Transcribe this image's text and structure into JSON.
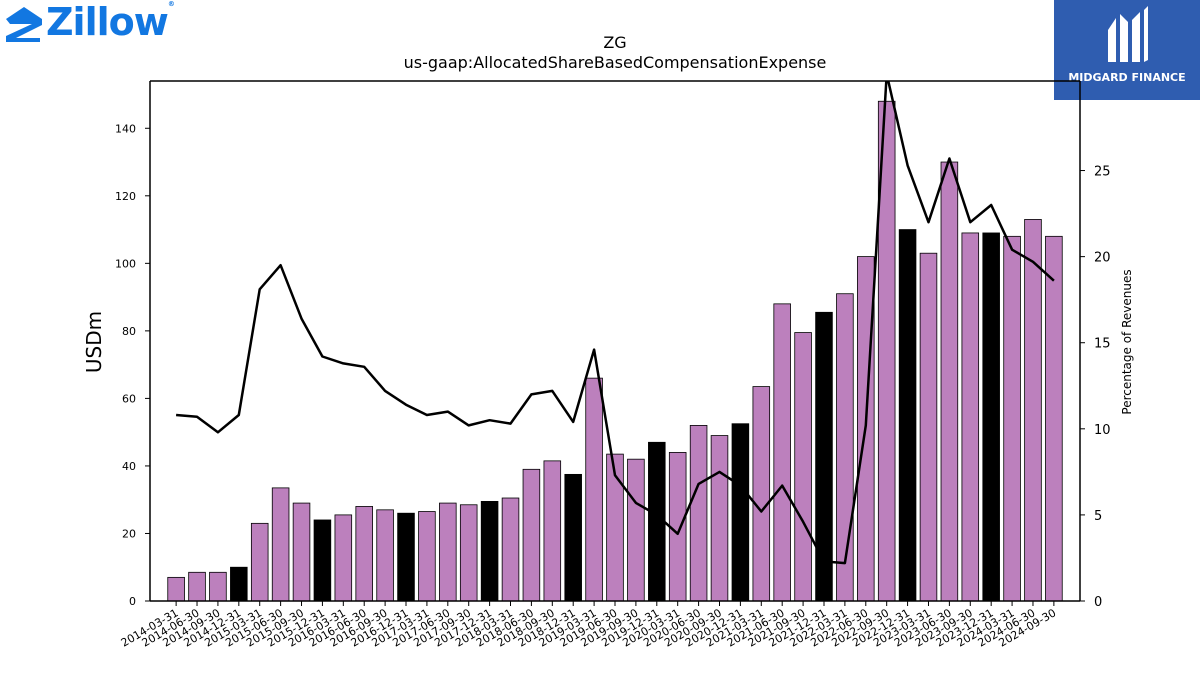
{
  "brand": {
    "name": "Zillow",
    "registered": "®",
    "partner": "MIDGARD FINANCE"
  },
  "colors": {
    "bar": "#bc80bd",
    "bar_highlight": "#000000",
    "line": "#000000",
    "brand_blue": "#1277e1",
    "badge_blue": "#2f5db0"
  },
  "chart_data": {
    "type": "bar",
    "title": "ZG",
    "subtitle": "us-gaap:AllocatedShareBasedCompensationExpense",
    "ylabel": "USDm",
    "y2label": "Percentage of Revenues",
    "ylim": [
      0,
      154
    ],
    "y2lim": [
      0,
      30.2
    ],
    "yticks": [
      0,
      20,
      40,
      60,
      80,
      100,
      120,
      140
    ],
    "y2ticks": [
      0,
      5,
      10,
      15,
      20,
      25
    ],
    "categories": [
      "2014-03-31",
      "2014-06-30",
      "2014-09-30",
      "2014-12-31",
      "2015-03-31",
      "2015-06-30",
      "2015-09-30",
      "2015-12-31",
      "2016-03-31",
      "2016-06-30",
      "2016-09-30",
      "2016-12-31",
      "2017-03-31",
      "2017-06-30",
      "2017-09-30",
      "2017-12-31",
      "2018-03-31",
      "2018-06-30",
      "2018-09-30",
      "2018-12-31",
      "2019-03-31",
      "2019-06-30",
      "2019-09-30",
      "2019-12-31",
      "2020-03-31",
      "2020-06-30",
      "2020-09-30",
      "2020-12-31",
      "2021-03-31",
      "2021-06-30",
      "2021-09-30",
      "2021-12-31",
      "2022-03-31",
      "2022-06-30",
      "2022-09-30",
      "2022-12-31",
      "2023-03-31",
      "2023-06-30",
      "2023-09-30",
      "2023-12-31",
      "2024-03-31",
      "2024-06-30",
      "2024-09-30"
    ],
    "series": [
      {
        "type": "bar",
        "values": [
          7,
          8.5,
          8.5,
          10,
          23,
          33.5,
          29,
          24,
          25.5,
          28,
          27,
          26,
          26.5,
          29,
          28.5,
          29.5,
          30.5,
          39,
          41.5,
          37.5,
          66,
          43.5,
          42,
          47,
          44,
          52,
          49,
          52.5,
          63.5,
          88,
          79.5,
          85.5,
          91,
          102,
          148,
          110,
          103,
          130,
          109,
          109,
          108,
          113,
          108
        ],
        "highlight": [
          false,
          false,
          false,
          true,
          false,
          false,
          false,
          true,
          false,
          false,
          false,
          true,
          false,
          false,
          false,
          true,
          false,
          false,
          false,
          true,
          false,
          false,
          false,
          true,
          false,
          false,
          false,
          true,
          false,
          false,
          false,
          true,
          false,
          false,
          false,
          true,
          false,
          false,
          false,
          true,
          false,
          false,
          false
        ]
      },
      {
        "type": "line",
        "axis": "right",
        "values": [
          10.8,
          10.7,
          9.8,
          10.8,
          18.1,
          19.5,
          16.4,
          14.2,
          13.8,
          13.6,
          12.2,
          11.4,
          10.8,
          11,
          10.2,
          10.5,
          10.3,
          12,
          12.2,
          10.4,
          14.6,
          7.3,
          5.7,
          5,
          3.9,
          6.8,
          7.5,
          6.7,
          5.2,
          6.7,
          4.6,
          2.3,
          2.2,
          10.2,
          30.6,
          25.3,
          22,
          25.7,
          22,
          23,
          20.4,
          19.7,
          18.6
        ]
      }
    ]
  }
}
